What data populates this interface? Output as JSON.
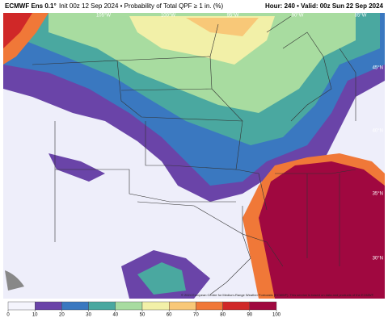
{
  "header": {
    "model": "ECMWF Ens 0.1°",
    "description": "Init 00z 12 Sep 2024 • Probability of Total QPF ≥ 1 in. (%)",
    "valid": "Hour: 240 • Valid: 00z Sun 22 Sep 2024"
  },
  "map": {
    "lon_labels": [
      "105°W",
      "100°W",
      "95°W",
      "90°W",
      "85°W"
    ],
    "lat_labels": [
      "45°N",
      "40°N",
      "35°N",
      "30°N"
    ],
    "credit": "© 2024 European Centre for Medium-Range Weather Forecasts (ECMWF). This service is based on data and products of the ECMWF."
  },
  "colorbar": {
    "ticks": [
      0,
      10,
      20,
      30,
      40,
      50,
      60,
      70,
      80,
      90,
      100
    ],
    "colors": [
      "#f4f4fc",
      "#6a44a8",
      "#3a78c0",
      "#4aa8a0",
      "#a8dca0",
      "#f2f0a8",
      "#f8c878",
      "#f07838",
      "#d02828",
      "#a00840"
    ]
  }
}
